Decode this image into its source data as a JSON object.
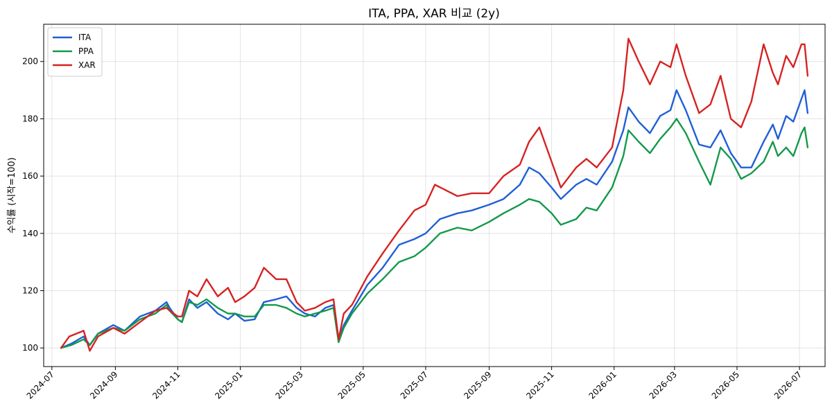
{
  "chart_data": {
    "type": "line",
    "title": "ITA, PPA, XAR 비교 (2y)",
    "xlabel": "",
    "ylabel": "수익률 (시작=100)",
    "xlim": [
      "2024-06-23",
      "2026-07-26"
    ],
    "ylim": [
      93.5,
      213
    ],
    "yticks": [
      100,
      120,
      140,
      160,
      180,
      200
    ],
    "xticks": [
      "2024-07",
      "2024-09",
      "2024-11",
      "2025-01",
      "2025-03",
      "2025-05",
      "2025-07",
      "2025-09",
      "2025-11",
      "2026-01",
      "2026-03",
      "2026-05",
      "2026-07"
    ],
    "grid": true,
    "legend_position": "top-left",
    "series": [
      {
        "name": "ITA",
        "color": "#1f5fd6",
        "points": [
          [
            "2024-07-10",
            100
          ],
          [
            "2024-07-20",
            101.5
          ],
          [
            "2024-08-01",
            104
          ],
          [
            "2024-08-07",
            101
          ],
          [
            "2024-08-15",
            105
          ],
          [
            "2024-08-30",
            108
          ],
          [
            "2024-09-10",
            106
          ],
          [
            "2024-09-25",
            111
          ],
          [
            "2024-10-10",
            113
          ],
          [
            "2024-10-21",
            116
          ],
          [
            "2024-10-24",
            114
          ],
          [
            "2024-11-01",
            110
          ],
          [
            "2024-11-05",
            109
          ],
          [
            "2024-11-12",
            117
          ],
          [
            "2024-11-20",
            114
          ],
          [
            "2024-11-29",
            116
          ],
          [
            "2024-12-10",
            112
          ],
          [
            "2024-12-20",
            110
          ],
          [
            "2024-12-27",
            112
          ],
          [
            "2025-01-05",
            109.5
          ],
          [
            "2025-01-15",
            110
          ],
          [
            "2025-01-24",
            116
          ],
          [
            "2025-02-05",
            117
          ],
          [
            "2025-02-15",
            118
          ],
          [
            "2025-02-25",
            114
          ],
          [
            "2025-03-05",
            112
          ],
          [
            "2025-03-15",
            111
          ],
          [
            "2025-03-25",
            114
          ],
          [
            "2025-04-02",
            115
          ],
          [
            "2025-04-07",
            103
          ],
          [
            "2025-04-12",
            108
          ],
          [
            "2025-04-20",
            113
          ],
          [
            "2025-05-05",
            122
          ],
          [
            "2025-05-20",
            128
          ],
          [
            "2025-06-05",
            136
          ],
          [
            "2025-06-20",
            138
          ],
          [
            "2025-07-01",
            140
          ],
          [
            "2025-07-15",
            145
          ],
          [
            "2025-08-01",
            147
          ],
          [
            "2025-08-15",
            148
          ],
          [
            "2025-09-01",
            150
          ],
          [
            "2025-09-15",
            152
          ],
          [
            "2025-10-01",
            157
          ],
          [
            "2025-10-10",
            163
          ],
          [
            "2025-10-20",
            161
          ],
          [
            "2025-11-01",
            156
          ],
          [
            "2025-11-10",
            152
          ],
          [
            "2025-11-25",
            157
          ],
          [
            "2025-12-05",
            159
          ],
          [
            "2025-12-15",
            157
          ],
          [
            "2025-12-30",
            165
          ],
          [
            "2026-01-10",
            176
          ],
          [
            "2026-01-15",
            184
          ],
          [
            "2026-01-25",
            179
          ],
          [
            "2026-02-05",
            175
          ],
          [
            "2026-02-15",
            181
          ],
          [
            "2026-02-25",
            183
          ],
          [
            "2026-03-03",
            190
          ],
          [
            "2026-03-12",
            183
          ],
          [
            "2026-03-25",
            171
          ],
          [
            "2026-04-05",
            170
          ],
          [
            "2026-04-15",
            176
          ],
          [
            "2026-04-25",
            168
          ],
          [
            "2026-05-05",
            163
          ],
          [
            "2026-05-15",
            163
          ],
          [
            "2026-05-27",
            172
          ],
          [
            "2026-06-05",
            178
          ],
          [
            "2026-06-10",
            173
          ],
          [
            "2026-06-18",
            181
          ],
          [
            "2026-06-25",
            179
          ],
          [
            "2026-07-03",
            187
          ],
          [
            "2026-07-06",
            190
          ],
          [
            "2026-07-09",
            182
          ]
        ]
      },
      {
        "name": "PPA",
        "color": "#13994a",
        "points": [
          [
            "2024-07-10",
            100
          ],
          [
            "2024-07-20",
            101
          ],
          [
            "2024-08-01",
            103
          ],
          [
            "2024-08-07",
            101
          ],
          [
            "2024-08-15",
            105
          ],
          [
            "2024-08-30",
            107
          ],
          [
            "2024-09-10",
            106
          ],
          [
            "2024-09-25",
            110
          ],
          [
            "2024-10-10",
            112
          ],
          [
            "2024-10-21",
            115
          ],
          [
            "2024-10-24",
            113
          ],
          [
            "2024-11-01",
            110
          ],
          [
            "2024-11-05",
            109
          ],
          [
            "2024-11-12",
            116
          ],
          [
            "2024-11-20",
            115
          ],
          [
            "2024-11-29",
            117
          ],
          [
            "2024-12-10",
            114
          ],
          [
            "2024-12-20",
            112
          ],
          [
            "2024-12-27",
            112
          ],
          [
            "2025-01-05",
            111
          ],
          [
            "2025-01-15",
            111
          ],
          [
            "2025-01-24",
            115
          ],
          [
            "2025-02-05",
            115
          ],
          [
            "2025-02-15",
            114
          ],
          [
            "2025-02-25",
            112
          ],
          [
            "2025-03-05",
            111
          ],
          [
            "2025-03-15",
            112
          ],
          [
            "2025-03-25",
            113
          ],
          [
            "2025-04-02",
            114
          ],
          [
            "2025-04-07",
            102
          ],
          [
            "2025-04-12",
            107
          ],
          [
            "2025-04-20",
            112
          ],
          [
            "2025-05-05",
            119
          ],
          [
            "2025-05-20",
            124
          ],
          [
            "2025-06-05",
            130
          ],
          [
            "2025-06-20",
            132
          ],
          [
            "2025-07-01",
            135
          ],
          [
            "2025-07-15",
            140
          ],
          [
            "2025-08-01",
            142
          ],
          [
            "2025-08-15",
            141
          ],
          [
            "2025-09-01",
            144
          ],
          [
            "2025-09-15",
            147
          ],
          [
            "2025-10-01",
            150
          ],
          [
            "2025-10-10",
            152
          ],
          [
            "2025-10-20",
            151
          ],
          [
            "2025-11-01",
            147
          ],
          [
            "2025-11-10",
            143
          ],
          [
            "2025-11-25",
            145
          ],
          [
            "2025-12-05",
            149
          ],
          [
            "2025-12-15",
            148
          ],
          [
            "2025-12-30",
            156
          ],
          [
            "2026-01-10",
            167
          ],
          [
            "2026-01-15",
            176
          ],
          [
            "2026-01-25",
            172
          ],
          [
            "2026-02-05",
            168
          ],
          [
            "2026-02-15",
            173
          ],
          [
            "2026-02-25",
            177
          ],
          [
            "2026-03-03",
            180
          ],
          [
            "2026-03-12",
            175
          ],
          [
            "2026-03-25",
            165
          ],
          [
            "2026-04-05",
            157
          ],
          [
            "2026-04-15",
            170
          ],
          [
            "2026-04-25",
            166
          ],
          [
            "2026-05-05",
            159
          ],
          [
            "2026-05-15",
            161
          ],
          [
            "2026-05-27",
            165
          ],
          [
            "2026-06-05",
            172
          ],
          [
            "2026-06-10",
            167
          ],
          [
            "2026-06-18",
            170
          ],
          [
            "2026-06-25",
            167
          ],
          [
            "2026-07-03",
            175
          ],
          [
            "2026-07-06",
            177
          ],
          [
            "2026-07-09",
            170
          ]
        ]
      },
      {
        "name": "XAR",
        "color": "#d62222",
        "points": [
          [
            "2024-07-10",
            100
          ],
          [
            "2024-07-18",
            104
          ],
          [
            "2024-08-01",
            106
          ],
          [
            "2024-08-07",
            99
          ],
          [
            "2024-08-15",
            104
          ],
          [
            "2024-08-30",
            107
          ],
          [
            "2024-09-10",
            105
          ],
          [
            "2024-09-25",
            109
          ],
          [
            "2024-10-10",
            113
          ],
          [
            "2024-10-21",
            114
          ],
          [
            "2024-10-24",
            113
          ],
          [
            "2024-11-01",
            111
          ],
          [
            "2024-11-05",
            111
          ],
          [
            "2024-11-12",
            120
          ],
          [
            "2024-11-20",
            118
          ],
          [
            "2024-11-29",
            124
          ],
          [
            "2024-12-10",
            118
          ],
          [
            "2024-12-20",
            121
          ],
          [
            "2024-12-27",
            116
          ],
          [
            "2025-01-05",
            118
          ],
          [
            "2025-01-15",
            121
          ],
          [
            "2025-01-24",
            128
          ],
          [
            "2025-02-05",
            124
          ],
          [
            "2025-02-15",
            124
          ],
          [
            "2025-02-25",
            116
          ],
          [
            "2025-03-05",
            113
          ],
          [
            "2025-03-15",
            114
          ],
          [
            "2025-03-25",
            116
          ],
          [
            "2025-04-02",
            117
          ],
          [
            "2025-04-07",
            103
          ],
          [
            "2025-04-12",
            112
          ],
          [
            "2025-04-20",
            115
          ],
          [
            "2025-05-05",
            125
          ],
          [
            "2025-05-20",
            133
          ],
          [
            "2025-06-05",
            141
          ],
          [
            "2025-06-20",
            148
          ],
          [
            "2025-07-01",
            150
          ],
          [
            "2025-07-10",
            157
          ],
          [
            "2025-08-01",
            153
          ],
          [
            "2025-08-15",
            154
          ],
          [
            "2025-09-01",
            154
          ],
          [
            "2025-09-15",
            160
          ],
          [
            "2025-10-01",
            164
          ],
          [
            "2025-10-10",
            172
          ],
          [
            "2025-10-20",
            177
          ],
          [
            "2025-11-01",
            165
          ],
          [
            "2025-11-10",
            156
          ],
          [
            "2025-11-25",
            163
          ],
          [
            "2025-12-05",
            166
          ],
          [
            "2025-12-15",
            163
          ],
          [
            "2025-12-30",
            170
          ],
          [
            "2026-01-10",
            190
          ],
          [
            "2026-01-15",
            208
          ],
          [
            "2026-01-25",
            200
          ],
          [
            "2026-02-05",
            192
          ],
          [
            "2026-02-15",
            200
          ],
          [
            "2026-02-25",
            198
          ],
          [
            "2026-03-03",
            206
          ],
          [
            "2026-03-12",
            195
          ],
          [
            "2026-03-25",
            182
          ],
          [
            "2026-04-05",
            185
          ],
          [
            "2026-04-15",
            195
          ],
          [
            "2026-04-25",
            180
          ],
          [
            "2026-05-05",
            177
          ],
          [
            "2026-05-15",
            186
          ],
          [
            "2026-05-27",
            206
          ],
          [
            "2026-06-05",
            196
          ],
          [
            "2026-06-10",
            192
          ],
          [
            "2026-06-18",
            202
          ],
          [
            "2026-06-25",
            198
          ],
          [
            "2026-07-03",
            206
          ],
          [
            "2026-07-06",
            206
          ],
          [
            "2026-07-09",
            195
          ]
        ]
      }
    ]
  }
}
